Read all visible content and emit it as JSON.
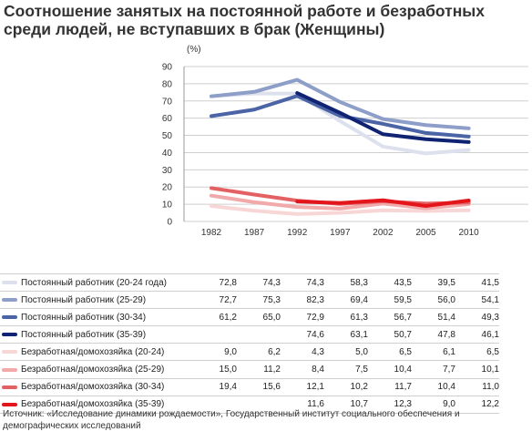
{
  "title": {
    "line1": "Соотношение занятых на постоянной работе и безработных",
    "line2": "среди людей, не вступавших в брак (Женщины)"
  },
  "chart_data": {
    "type": "line",
    "ylabel": "(%)",
    "ylim": [
      0,
      90
    ],
    "yticks": [
      0,
      10,
      20,
      30,
      40,
      50,
      60,
      70,
      80,
      90
    ],
    "categories": [
      "1982",
      "1987",
      "1992",
      "1997",
      "2002",
      "2005",
      "2010"
    ],
    "grid": true,
    "series": [
      {
        "name": "Постоянный работник (20-24 года)",
        "color": "#dde1ee",
        "values": [
          72.8,
          74.3,
          74.3,
          58.3,
          43.5,
          39.5,
          41.5
        ],
        "values_text": [
          "72,8",
          "74,3",
          "74,3",
          "58,3",
          "43,5",
          "39,5",
          "41,5"
        ]
      },
      {
        "name": "Постоянный работник (25-29)",
        "color": "#8d9ec8",
        "values": [
          72.7,
          75.3,
          82.3,
          69.4,
          59.5,
          56.0,
          54.1
        ],
        "values_text": [
          "72,7",
          "75,3",
          "82,3",
          "69,4",
          "59,5",
          "56,0",
          "54,1"
        ]
      },
      {
        "name": "Постоянный работник (30-34)",
        "color": "#4a64a6",
        "values": [
          61.2,
          65.0,
          72.9,
          61.3,
          56.7,
          51.4,
          49.3
        ],
        "values_text": [
          "61,2",
          "65,0",
          "72,9",
          "61,3",
          "56,7",
          "51,4",
          "49,3"
        ]
      },
      {
        "name": "Постоянный работник (35-39)",
        "color": "#0f2372",
        "values": [
          null,
          null,
          74.6,
          63.1,
          50.7,
          47.8,
          46.1
        ],
        "values_text": [
          "",
          "",
          "74,6",
          "63,1",
          "50,7",
          "47,8",
          "46,1"
        ]
      },
      {
        "name": "Безработная/домохозяйка (20-24)",
        "color": "#f8d6d6",
        "values": [
          9.0,
          6.2,
          4.3,
          5.0,
          6.5,
          6.1,
          6.5
        ],
        "values_text": [
          "9,0",
          "6,2",
          "4,3",
          "5,0",
          "6,5",
          "6,1",
          "6,5"
        ]
      },
      {
        "name": "Безработная/домохозяйка (25-29)",
        "color": "#f1a9aa",
        "values": [
          15.0,
          11.2,
          8.4,
          7.5,
          10.4,
          7.7,
          10.1
        ],
        "values_text": [
          "15,0",
          "11,2",
          "8,4",
          "7,5",
          "10,4",
          "7,7",
          "10,1"
        ]
      },
      {
        "name": "Безработная/домохозяйка (30-34)",
        "color": "#e46163",
        "values": [
          19.4,
          15.6,
          12.1,
          10.2,
          11.7,
          10.4,
          11.0
        ],
        "values_text": [
          "19,4",
          "15,6",
          "12,1",
          "10,2",
          "11,7",
          "10,4",
          "11,0"
        ]
      },
      {
        "name": "Безработная/домохозяйка (35-39)",
        "color": "#e4141b",
        "values": [
          null,
          null,
          11.6,
          10.7,
          12.3,
          9.0,
          12.2
        ],
        "values_text": [
          "",
          "",
          "11,6",
          "10,7",
          "12,3",
          "9,0",
          "12,2"
        ]
      }
    ]
  },
  "source": "Источник: «Исследование динамики рождаемости», Государственный институт социального обеспечения и демографических исследований"
}
